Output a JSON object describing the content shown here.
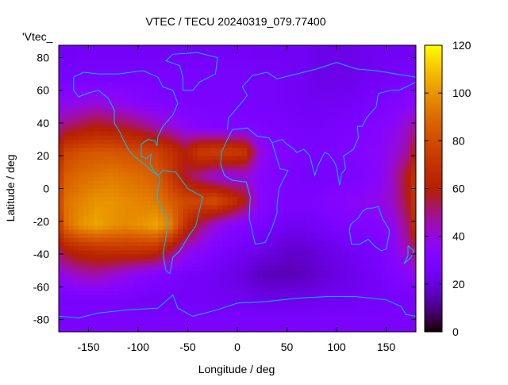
{
  "chart_data": {
    "type": "heatmap",
    "title": "VTEC / TECU 20240319_079.77400",
    "xlabel": "Longitude / deg",
    "ylabel": "Latitude / deg",
    "key_label": "'Vtec_",
    "xlim": [
      -180,
      180
    ],
    "ylim": [
      -87.5,
      87.5
    ],
    "xticks": [
      "-150",
      "-100",
      "-50",
      "0",
      "50",
      "100",
      "150"
    ],
    "xtick_values": [
      -150,
      -100,
      -50,
      0,
      50,
      100,
      150
    ],
    "yticks": [
      "80",
      "60",
      "40",
      "20",
      "0",
      "-20",
      "-40",
      "-60",
      "-80"
    ],
    "ytick_values": [
      80,
      60,
      40,
      20,
      0,
      -20,
      -40,
      -60,
      -80
    ],
    "colorbar": {
      "range": [
        0,
        120
      ],
      "ticks": [
        "0",
        "20",
        "40",
        "60",
        "80",
        "100",
        "120"
      ],
      "tick_values": [
        0,
        20,
        40,
        60,
        80,
        100,
        120
      ]
    },
    "grid_lon_centers": [
      -172.5,
      -157.5,
      -142.5,
      -127.5,
      -112.5,
      -97.5,
      -82.5,
      -67.5,
      -52.5,
      -37.5,
      -22.5,
      -7.5,
      7.5,
      22.5,
      37.5,
      52.5,
      67.5,
      82.5,
      97.5,
      112.5,
      127.5,
      142.5,
      157.5,
      172.5
    ],
    "grid_lat_centers": [
      82.5,
      67.5,
      52.5,
      37.5,
      22.5,
      7.5,
      -7.5,
      -22.5,
      -37.5,
      -52.5,
      -67.5,
      -82.5
    ],
    "values_tecu": [
      [
        24,
        25,
        25,
        25,
        25,
        25,
        25,
        25,
        25,
        25,
        25,
        25,
        25,
        24,
        24,
        24,
        24,
        22,
        22,
        22,
        23,
        24,
        24,
        24
      ],
      [
        27,
        27,
        27,
        27,
        27,
        27,
        27,
        27,
        27,
        27,
        27,
        27,
        27,
        26,
        26,
        25,
        24,
        22,
        22,
        22,
        24,
        25,
        26,
        27
      ],
      [
        36,
        38,
        40,
        38,
        36,
        32,
        30,
        29,
        28,
        28,
        28,
        28,
        27,
        26,
        26,
        25,
        24,
        24,
        24,
        25,
        26,
        28,
        30,
        33
      ],
      [
        52,
        56,
        60,
        58,
        56,
        52,
        46,
        42,
        36,
        32,
        30,
        30,
        30,
        29,
        28,
        27,
        26,
        26,
        27,
        28,
        30,
        32,
        36,
        44
      ],
      [
        78,
        82,
        84,
        84,
        82,
        80,
        78,
        70,
        60,
        74,
        76,
        76,
        72,
        40,
        32,
        30,
        28,
        28,
        29,
        30,
        32,
        34,
        40,
        48
      ],
      [
        86,
        90,
        92,
        94,
        92,
        90,
        86,
        74,
        56,
        48,
        40,
        38,
        40,
        34,
        30,
        28,
        26,
        26,
        27,
        28,
        30,
        34,
        44,
        60
      ],
      [
        92,
        96,
        100,
        100,
        98,
        96,
        94,
        86,
        80,
        78,
        82,
        72,
        60,
        34,
        30,
        28,
        28,
        30,
        32,
        34,
        36,
        38,
        44,
        58
      ],
      [
        90,
        100,
        104,
        100,
        98,
        100,
        104,
        96,
        70,
        52,
        40,
        34,
        30,
        28,
        26,
        24,
        24,
        26,
        28,
        30,
        30,
        32,
        38,
        52
      ],
      [
        60,
        66,
        68,
        70,
        70,
        70,
        68,
        56,
        40,
        34,
        30,
        26,
        24,
        22,
        20,
        18,
        18,
        20,
        22,
        24,
        26,
        28,
        34,
        46
      ],
      [
        40,
        44,
        46,
        42,
        38,
        34,
        30,
        28,
        26,
        25,
        24,
        22,
        20,
        16,
        15,
        15,
        16,
        18,
        20,
        22,
        24,
        26,
        30,
        34
      ],
      [
        26,
        27,
        27,
        27,
        26,
        25,
        25,
        25,
        25,
        25,
        24,
        24,
        23,
        22,
        22,
        22,
        22,
        23,
        24,
        24,
        25,
        25,
        26,
        26
      ],
      [
        28,
        28,
        28,
        28,
        28,
        28,
        28,
        28,
        28,
        28,
        28,
        28,
        28,
        28,
        28,
        28,
        28,
        28,
        28,
        28,
        28,
        28,
        28,
        28
      ]
    ],
    "grid": false,
    "legend": "top-left"
  }
}
